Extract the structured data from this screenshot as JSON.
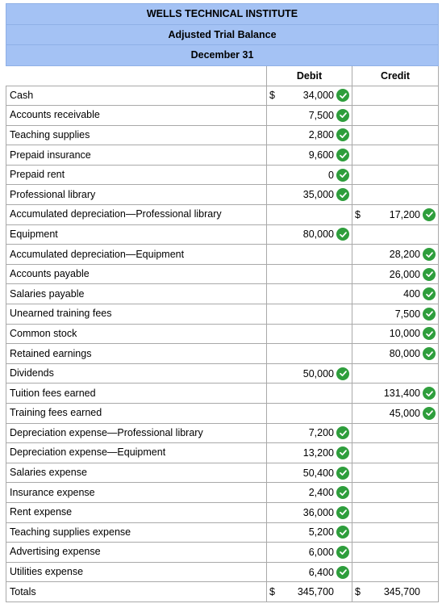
{
  "header": {
    "company": "WELLS TECHNICAL INSTITUTE",
    "statement": "Adjusted Trial Balance",
    "date": "December 31"
  },
  "columns": {
    "debit": "Debit",
    "credit": "Credit"
  },
  "rows": [
    {
      "label": "Cash",
      "debit": "34,000",
      "debit_dollar": "$",
      "debit_check": true,
      "credit": "",
      "credit_dollar": "",
      "credit_check": false
    },
    {
      "label": "Accounts receivable",
      "debit": "7,500",
      "debit_dollar": "",
      "debit_check": true,
      "credit": "",
      "credit_dollar": "",
      "credit_check": false
    },
    {
      "label": "Teaching supplies",
      "debit": "2,800",
      "debit_dollar": "",
      "debit_check": true,
      "credit": "",
      "credit_dollar": "",
      "credit_check": false
    },
    {
      "label": "Prepaid insurance",
      "debit": "9,600",
      "debit_dollar": "",
      "debit_check": true,
      "credit": "",
      "credit_dollar": "",
      "credit_check": false
    },
    {
      "label": "Prepaid rent",
      "debit": "0",
      "debit_dollar": "",
      "debit_check": true,
      "credit": "",
      "credit_dollar": "",
      "credit_check": false
    },
    {
      "label": "Professional library",
      "debit": "35,000",
      "debit_dollar": "",
      "debit_check": true,
      "credit": "",
      "credit_dollar": "",
      "credit_check": false
    },
    {
      "label": "Accumulated depreciation—Professional library",
      "debit": "",
      "debit_dollar": "",
      "debit_check": false,
      "credit": "17,200",
      "credit_dollar": "$",
      "credit_check": true
    },
    {
      "label": "Equipment",
      "debit": "80,000",
      "debit_dollar": "",
      "debit_check": true,
      "credit": "",
      "credit_dollar": "",
      "credit_check": false
    },
    {
      "label": "Accumulated depreciation—Equipment",
      "debit": "",
      "debit_dollar": "",
      "debit_check": false,
      "credit": "28,200",
      "credit_dollar": "",
      "credit_check": true
    },
    {
      "label": "Accounts payable",
      "debit": "",
      "debit_dollar": "",
      "debit_check": false,
      "credit": "26,000",
      "credit_dollar": "",
      "credit_check": true
    },
    {
      "label": "Salaries payable",
      "debit": "",
      "debit_dollar": "",
      "debit_check": false,
      "credit": "400",
      "credit_dollar": "",
      "credit_check": true
    },
    {
      "label": "Unearned training fees",
      "debit": "",
      "debit_dollar": "",
      "debit_check": false,
      "credit": "7,500",
      "credit_dollar": "",
      "credit_check": true
    },
    {
      "label": "Common stock",
      "debit": "",
      "debit_dollar": "",
      "debit_check": false,
      "credit": "10,000",
      "credit_dollar": "",
      "credit_check": true
    },
    {
      "label": "Retained earnings",
      "debit": "",
      "debit_dollar": "",
      "debit_check": false,
      "credit": "80,000",
      "credit_dollar": "",
      "credit_check": true
    },
    {
      "label": "Dividends",
      "debit": "50,000",
      "debit_dollar": "",
      "debit_check": true,
      "credit": "",
      "credit_dollar": "",
      "credit_check": false
    },
    {
      "label": "Tuition fees earned",
      "debit": "",
      "debit_dollar": "",
      "debit_check": false,
      "credit": "131,400",
      "credit_dollar": "",
      "credit_check": true
    },
    {
      "label": "Training fees earned",
      "debit": "",
      "debit_dollar": "",
      "debit_check": false,
      "credit": "45,000",
      "credit_dollar": "",
      "credit_check": true
    },
    {
      "label": "Depreciation expense—Professional library",
      "debit": "7,200",
      "debit_dollar": "",
      "debit_check": true,
      "credit": "",
      "credit_dollar": "",
      "credit_check": false
    },
    {
      "label": "Depreciation expense—Equipment",
      "debit": "13,200",
      "debit_dollar": "",
      "debit_check": true,
      "credit": "",
      "credit_dollar": "",
      "credit_check": false
    },
    {
      "label": "Salaries expense",
      "debit": "50,400",
      "debit_dollar": "",
      "debit_check": true,
      "credit": "",
      "credit_dollar": "",
      "credit_check": false
    },
    {
      "label": "Insurance expense",
      "debit": "2,400",
      "debit_dollar": "",
      "debit_check": true,
      "credit": "",
      "credit_dollar": "",
      "credit_check": false
    },
    {
      "label": "Rent expense",
      "debit": "36,000",
      "debit_dollar": "",
      "debit_check": true,
      "credit": "",
      "credit_dollar": "",
      "credit_check": false
    },
    {
      "label": "Teaching supplies expense",
      "debit": "5,200",
      "debit_dollar": "",
      "debit_check": true,
      "credit": "",
      "credit_dollar": "",
      "credit_check": false
    },
    {
      "label": "Advertising expense",
      "debit": "6,000",
      "debit_dollar": "",
      "debit_check": true,
      "credit": "",
      "credit_dollar": "",
      "credit_check": false
    },
    {
      "label": "Utilities expense",
      "debit": "6,400",
      "debit_dollar": "",
      "debit_check": true,
      "credit": "",
      "credit_dollar": "",
      "credit_check": false
    }
  ],
  "totals": {
    "label": "Totals",
    "debit": "345,700",
    "debit_dollar": "$",
    "credit": "345,700",
    "credit_dollar": "$"
  },
  "icons": {
    "check": "check-circle-icon"
  },
  "colors": {
    "header_bg": "#a4c2f4",
    "check_green": "#2e9e3c",
    "border": "#a9a9a9"
  }
}
